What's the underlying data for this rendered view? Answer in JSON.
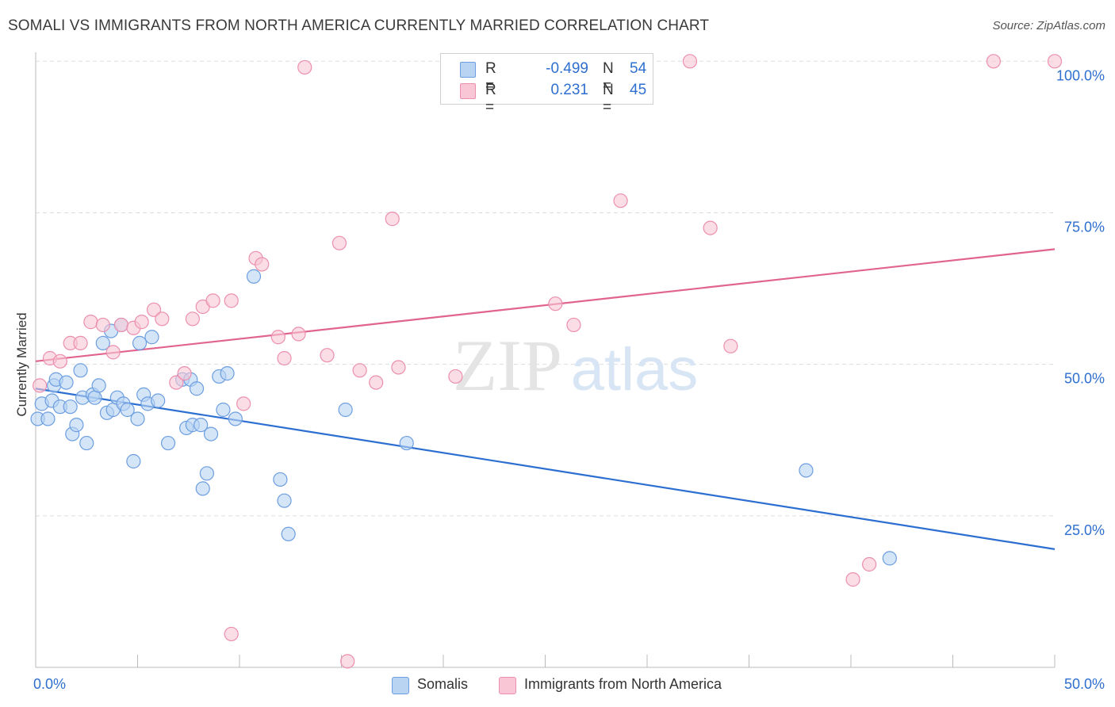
{
  "title": "SOMALI VS IMMIGRANTS FROM NORTH AMERICA CURRENTLY MARRIED CORRELATION CHART",
  "source": "Source: ZipAtlas.com",
  "watermark": {
    "zip": "ZIP",
    "atlas": "atlas"
  },
  "legend": {
    "r_label": "R =",
    "n_label": "N =",
    "rows": [
      {
        "r": "-0.499",
        "n": "54"
      },
      {
        "r": "0.231",
        "n": "45"
      }
    ]
  },
  "colors": {
    "blue_fill": "#b9d3f3",
    "blue_stroke": "#6c9ee0",
    "blue_line": "#2c6fd1",
    "pink_fill": "#f9c6d6",
    "pink_stroke": "#ec8fae",
    "pink_line": "#e0648e",
    "tick_label": "#2f6fcf",
    "grid": "#dddddd"
  },
  "chart_data": {
    "type": "scatter",
    "title": "SOMALI VS IMMIGRANTS FROM NORTH AMERICA CURRENTLY MARRIED CORRELATION CHART",
    "xlabel": "",
    "ylabel": "Currently Married",
    "xlim": [
      0,
      50
    ],
    "ylim": [
      0,
      102
    ],
    "x_tick_labels": [
      "0.0%",
      "50.0%"
    ],
    "y_ticks": [
      25,
      50,
      75,
      100
    ],
    "y_tick_labels": [
      "25.0%",
      "50.0%",
      "75.0%",
      "100.0%"
    ],
    "grid": true,
    "series": [
      {
        "name": "Somalis",
        "trend": {
          "x": [
            0,
            50
          ],
          "y": [
            46.0,
            19.5
          ]
        },
        "points": [
          [
            0.1,
            41.0
          ],
          [
            0.3,
            43.5
          ],
          [
            0.6,
            41.0
          ],
          [
            0.8,
            44.0
          ],
          [
            0.9,
            46.5
          ],
          [
            1.0,
            47.5
          ],
          [
            1.2,
            43.0
          ],
          [
            1.5,
            47.0
          ],
          [
            1.7,
            43.0
          ],
          [
            1.8,
            38.5
          ],
          [
            2.0,
            40.0
          ],
          [
            2.2,
            49.0
          ],
          [
            2.3,
            44.5
          ],
          [
            2.5,
            37.0
          ],
          [
            2.8,
            45.0
          ],
          [
            2.9,
            44.5
          ],
          [
            3.1,
            46.5
          ],
          [
            3.3,
            53.5
          ],
          [
            3.5,
            42.0
          ],
          [
            3.7,
            55.5
          ],
          [
            3.8,
            42.5
          ],
          [
            4.0,
            44.5
          ],
          [
            4.2,
            56.5
          ],
          [
            4.3,
            43.5
          ],
          [
            4.5,
            42.5
          ],
          [
            4.8,
            34.0
          ],
          [
            5.0,
            41.0
          ],
          [
            5.1,
            53.5
          ],
          [
            5.3,
            45.0
          ],
          [
            5.5,
            43.5
          ],
          [
            5.7,
            54.5
          ],
          [
            6.0,
            44.0
          ],
          [
            6.5,
            37.0
          ],
          [
            7.2,
            47.5
          ],
          [
            7.4,
            39.5
          ],
          [
            7.6,
            47.5
          ],
          [
            7.7,
            40.0
          ],
          [
            7.9,
            46.0
          ],
          [
            8.1,
            40.0
          ],
          [
            8.2,
            29.5
          ],
          [
            8.4,
            32.0
          ],
          [
            8.6,
            38.5
          ],
          [
            9.0,
            48.0
          ],
          [
            9.2,
            42.5
          ],
          [
            9.4,
            48.5
          ],
          [
            9.8,
            41.0
          ],
          [
            10.7,
            64.5
          ],
          [
            12.0,
            31.0
          ],
          [
            12.2,
            27.5
          ],
          [
            12.4,
            22.0
          ],
          [
            15.2,
            42.5
          ],
          [
            18.2,
            37.0
          ],
          [
            37.8,
            32.5
          ],
          [
            41.9,
            18.0
          ]
        ]
      },
      {
        "name": "Immigrants from North America",
        "trend": {
          "x": [
            0,
            50
          ],
          "y": [
            50.5,
            69.0
          ]
        },
        "points": [
          [
            0.2,
            46.5
          ],
          [
            0.7,
            51.0
          ],
          [
            1.2,
            50.5
          ],
          [
            1.7,
            53.5
          ],
          [
            2.2,
            53.5
          ],
          [
            2.7,
            57.0
          ],
          [
            3.3,
            56.5
          ],
          [
            3.8,
            52.0
          ],
          [
            4.2,
            56.5
          ],
          [
            4.8,
            56.0
          ],
          [
            5.2,
            57.0
          ],
          [
            5.8,
            59.0
          ],
          [
            6.2,
            57.5
          ],
          [
            6.9,
            47.0
          ],
          [
            7.3,
            48.5
          ],
          [
            7.7,
            57.5
          ],
          [
            8.2,
            59.5
          ],
          [
            8.7,
            60.5
          ],
          [
            9.6,
            60.5
          ],
          [
            9.6,
            5.5
          ],
          [
            10.2,
            43.5
          ],
          [
            10.8,
            67.5
          ],
          [
            11.1,
            66.5
          ],
          [
            11.9,
            54.5
          ],
          [
            12.2,
            51.0
          ],
          [
            12.9,
            55.0
          ],
          [
            13.2,
            99.0
          ],
          [
            14.3,
            51.5
          ],
          [
            14.9,
            70.0
          ],
          [
            15.3,
            1.0
          ],
          [
            15.9,
            49.0
          ],
          [
            16.7,
            47.0
          ],
          [
            17.5,
            74.0
          ],
          [
            17.8,
            49.5
          ],
          [
            20.6,
            48.0
          ],
          [
            25.5,
            60.0
          ],
          [
            26.4,
            56.5
          ],
          [
            28.7,
            77.0
          ],
          [
            32.1,
            100.0
          ],
          [
            33.1,
            72.5
          ],
          [
            34.1,
            53.0
          ],
          [
            40.1,
            14.5
          ],
          [
            40.9,
            17.0
          ],
          [
            47.0,
            100.0
          ],
          [
            50.0,
            100.0
          ]
        ]
      }
    ]
  }
}
